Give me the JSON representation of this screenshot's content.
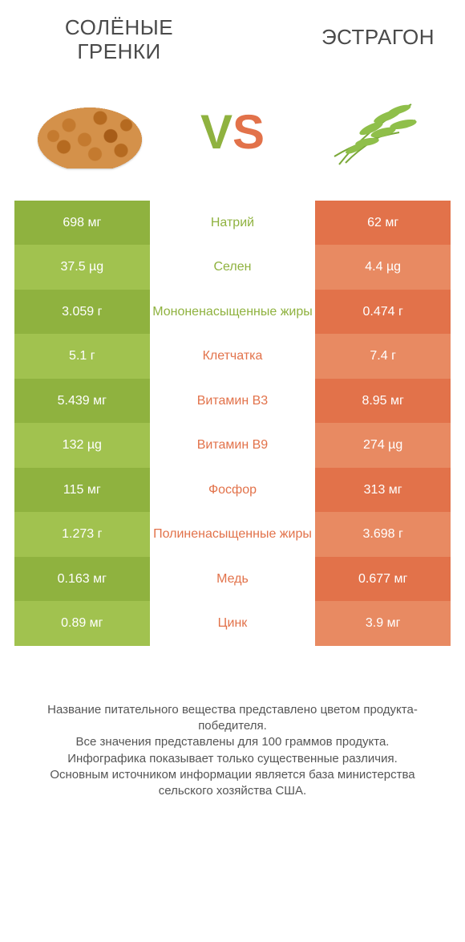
{
  "header": {
    "left_title": "СОЛЁНЫЕ\nГРЕНКИ",
    "right_title": "ЭСТРАГОН",
    "vs_v": "V",
    "vs_s": "S"
  },
  "colors": {
    "green_dark": "#8fb23f",
    "green_light": "#a1c24f",
    "orange_dark": "#e2724a",
    "orange_light": "#e88a62",
    "text": "#4a4a4a"
  },
  "rows": [
    {
      "left": "698 мг",
      "label": "Натрий",
      "right": "62 мг",
      "winner": "left"
    },
    {
      "left": "37.5 µg",
      "label": "Селен",
      "right": "4.4 µg",
      "winner": "left"
    },
    {
      "left": "3.059 г",
      "label": "Мононенасыщенные жиры",
      "right": "0.474 г",
      "winner": "left"
    },
    {
      "left": "5.1 г",
      "label": "Клетчатка",
      "right": "7.4 г",
      "winner": "right"
    },
    {
      "left": "5.439 мг",
      "label": "Витамин B3",
      "right": "8.95 мг",
      "winner": "right"
    },
    {
      "left": "132 µg",
      "label": "Витамин B9",
      "right": "274 µg",
      "winner": "right"
    },
    {
      "left": "115 мг",
      "label": "Фосфор",
      "right": "313 мг",
      "winner": "right"
    },
    {
      "left": "1.273 г",
      "label": "Полиненасыщенные жиры",
      "right": "3.698 г",
      "winner": "right"
    },
    {
      "left": "0.163 мг",
      "label": "Медь",
      "right": "0.677 мг",
      "winner": "right"
    },
    {
      "left": "0.89 мг",
      "label": "Цинк",
      "right": "3.9 мг",
      "winner": "right"
    }
  ],
  "footer": {
    "line1": "Название питательного вещества представлено цветом продукта-победителя.",
    "line2": "Все значения представлены для 100 граммов продукта.",
    "line3": "Инфографика показывает только существенные различия.",
    "line4": "Основным источником информации является база министерства сельского хозяйства США."
  }
}
